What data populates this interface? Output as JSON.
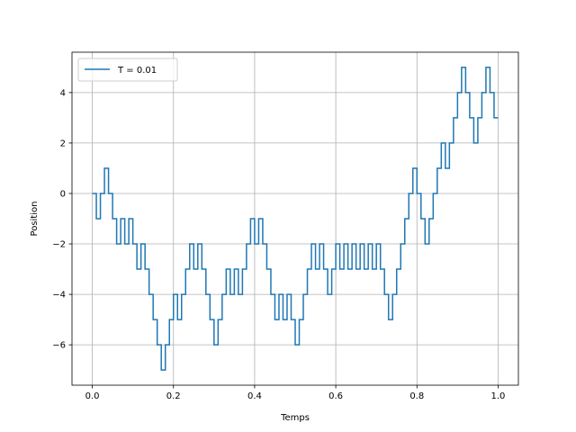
{
  "chart_data": {
    "type": "line",
    "drawstyle": "steps-post",
    "title": "",
    "xlabel": "Temps",
    "ylabel": "Position",
    "xlim": [
      -0.05,
      1.05
    ],
    "ylim": [
      -7.6,
      5.6
    ],
    "xticks": [
      0.0,
      0.2,
      0.4,
      0.6,
      0.8,
      1.0
    ],
    "xtick_labels": [
      "0.0",
      "0.2",
      "0.4",
      "0.6",
      "0.8",
      "1.0"
    ],
    "yticks": [
      -6,
      -4,
      -2,
      0,
      2,
      4
    ],
    "ytick_labels": [
      "−6",
      "−4",
      "−2",
      "0",
      "2",
      "4"
    ],
    "grid": true,
    "legend_position": "top-left",
    "series": [
      {
        "name": "T = 0.01",
        "color": "#1f77b4",
        "x_start": 0.0,
        "x_step": 0.01,
        "values": [
          0,
          -1,
          0,
          1,
          0,
          -1,
          -2,
          -1,
          -2,
          -1,
          -2,
          -3,
          -2,
          -3,
          -4,
          -5,
          -6,
          -7,
          -6,
          -5,
          -4,
          -5,
          -4,
          -3,
          -2,
          -3,
          -2,
          -3,
          -4,
          -5,
          -6,
          -5,
          -4,
          -3,
          -4,
          -3,
          -4,
          -3,
          -2,
          -1,
          -2,
          -1,
          -2,
          -3,
          -4,
          -5,
          -4,
          -5,
          -4,
          -5,
          -6,
          -5,
          -4,
          -3,
          -2,
          -3,
          -2,
          -3,
          -4,
          -3,
          -2,
          -3,
          -2,
          -3,
          -2,
          -3,
          -2,
          -3,
          -2,
          -3,
          -2,
          -3,
          -4,
          -5,
          -4,
          -3,
          -2,
          -1,
          0,
          1,
          0,
          -1,
          -2,
          -1,
          0,
          1,
          2,
          1,
          2,
          3,
          4,
          5,
          4,
          3,
          2,
          3,
          4,
          5,
          4,
          3,
          3
        ]
      }
    ]
  }
}
